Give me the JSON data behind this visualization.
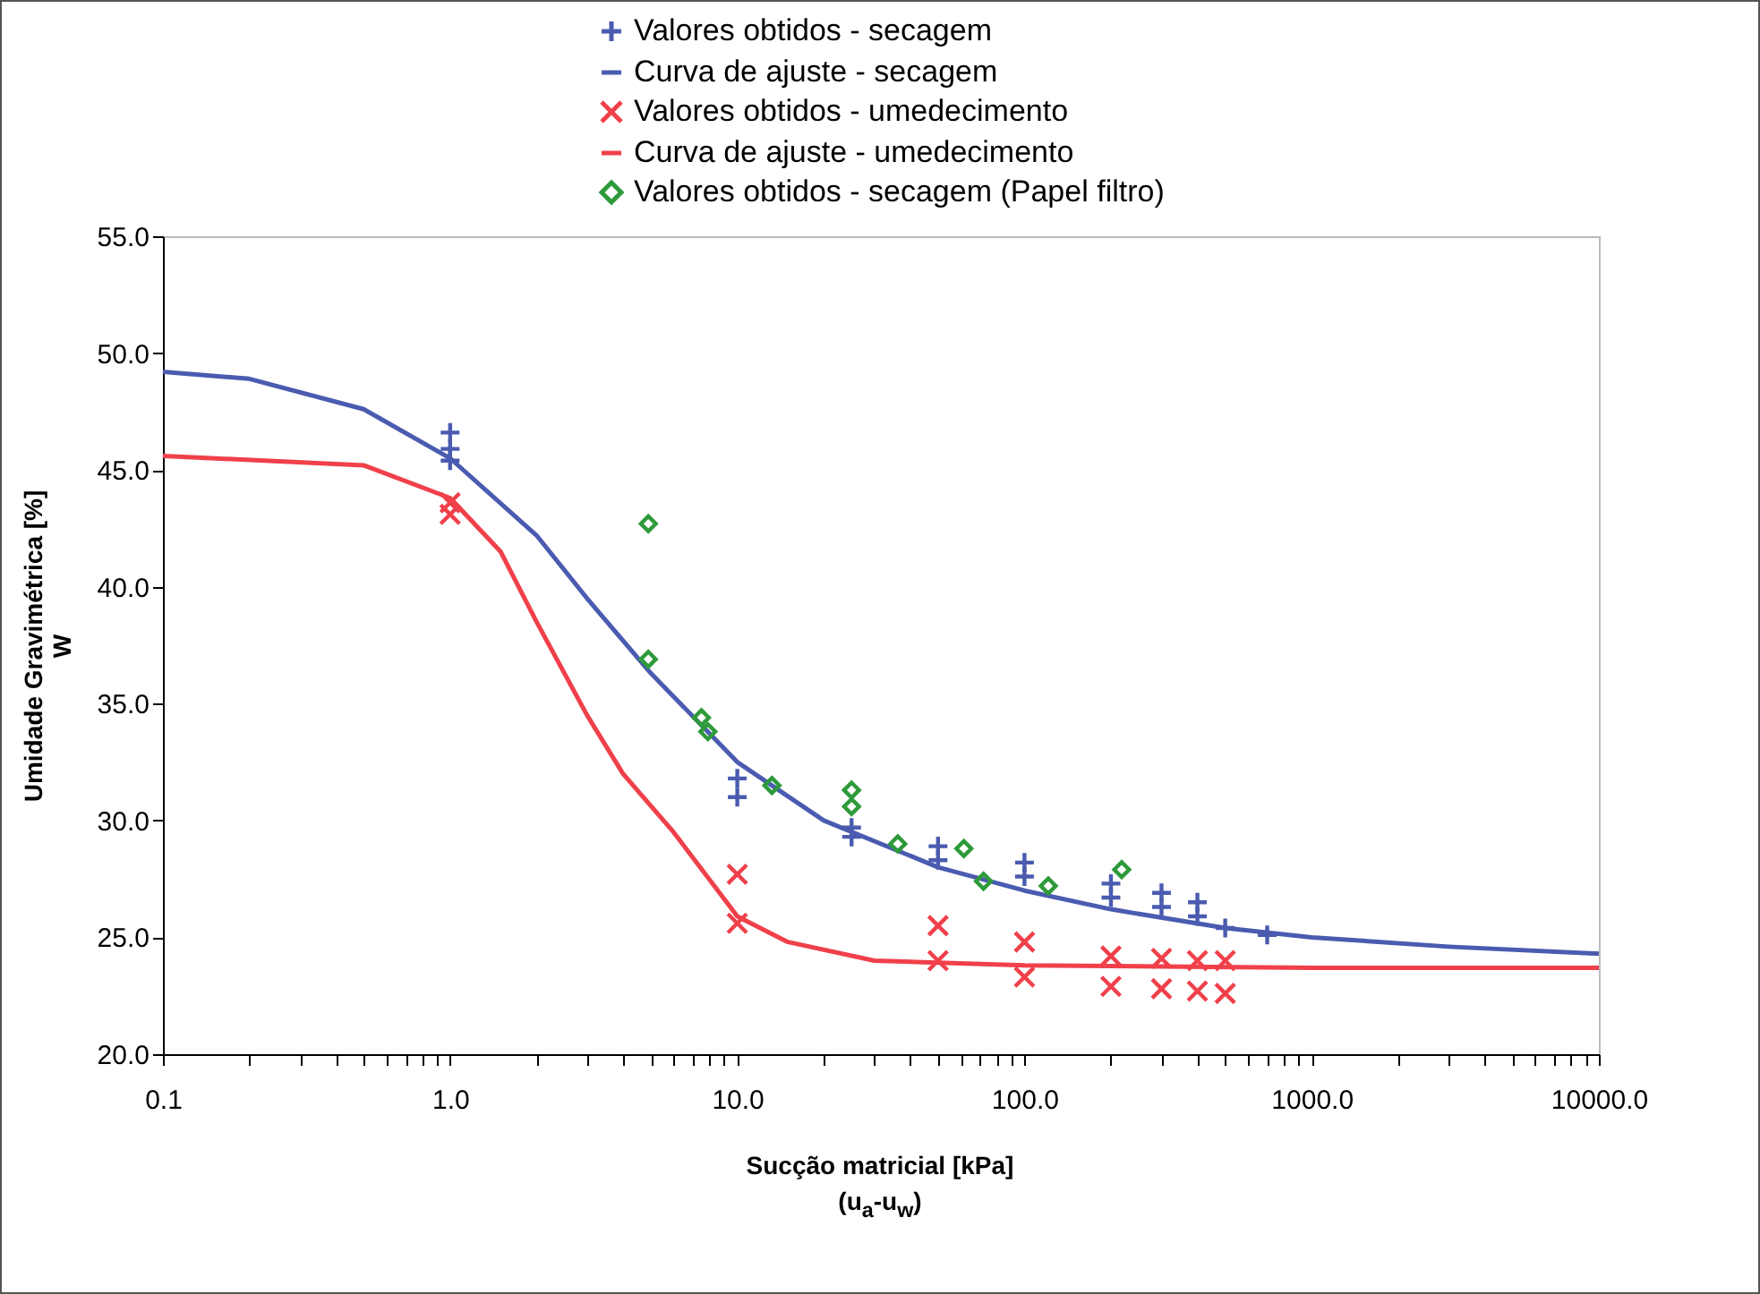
{
  "chart_data": {
    "type": "scatter",
    "xlabel": "Sucção matricial [kPa]\n(u$_{a}$-u$_{w}$)",
    "ylabel": "Umidade  Gravimétrica [%]\nW",
    "log": "x",
    "grid": false,
    "legend": "top",
    "xlim": [
      0.1,
      10000
    ],
    "ylim": [
      20,
      55
    ],
    "xticks": [
      {
        "value": 0.1,
        "label": "0.1"
      },
      {
        "value": 0.2,
        "label": null
      },
      {
        "value": 0.3,
        "label": null
      },
      {
        "value": 0.4,
        "label": null
      },
      {
        "value": 0.5,
        "label": null
      },
      {
        "value": 0.6,
        "label": null
      },
      {
        "value": 0.7,
        "label": null
      },
      {
        "value": 0.8,
        "label": null
      },
      {
        "value": 0.9,
        "label": null
      },
      {
        "value": 1,
        "label": "1.0"
      },
      {
        "value": 2,
        "label": null
      },
      {
        "value": 3,
        "label": null
      },
      {
        "value": 4,
        "label": null
      },
      {
        "value": 5,
        "label": null
      },
      {
        "value": 6,
        "label": null
      },
      {
        "value": 7,
        "label": null
      },
      {
        "value": 8,
        "label": null
      },
      {
        "value": 9,
        "label": null
      },
      {
        "value": 10,
        "label": "10.0"
      },
      {
        "value": 20,
        "label": null
      },
      {
        "value": 30,
        "label": null
      },
      {
        "value": 40,
        "label": null
      },
      {
        "value": 50,
        "label": null
      },
      {
        "value": 60,
        "label": null
      },
      {
        "value": 70,
        "label": null
      },
      {
        "value": 80,
        "label": null
      },
      {
        "value": 90,
        "label": null
      },
      {
        "value": 100,
        "label": "100.0"
      },
      {
        "value": 200,
        "label": null
      },
      {
        "value": 300,
        "label": null
      },
      {
        "value": 400,
        "label": null
      },
      {
        "value": 500,
        "label": null
      },
      {
        "value": 600,
        "label": null
      },
      {
        "value": 700,
        "label": null
      },
      {
        "value": 800,
        "label": null
      },
      {
        "value": 900,
        "label": null
      },
      {
        "value": 1000,
        "label": "1000.0"
      },
      {
        "value": 2000,
        "label": null
      },
      {
        "value": 3000,
        "label": null
      },
      {
        "value": 4000,
        "label": null
      },
      {
        "value": 5000,
        "label": null
      },
      {
        "value": 6000,
        "label": null
      },
      {
        "value": 7000,
        "label": null
      },
      {
        "value": 8000,
        "label": null
      },
      {
        "value": 9000,
        "label": null
      },
      {
        "value": 10000,
        "label": "10000.0"
      }
    ],
    "yticks": [
      {
        "value": 20,
        "label": "20.0"
      },
      {
        "value": 25,
        "label": "25.0"
      },
      {
        "value": 30,
        "label": "30.0"
      },
      {
        "value": 35,
        "label": "35.0"
      },
      {
        "value": 40,
        "label": "40.0"
      },
      {
        "value": 45,
        "label": "45.0"
      },
      {
        "value": 50,
        "label": "50.0"
      },
      {
        "value": 55,
        "label": "55.0"
      }
    ],
    "series": [
      {
        "name": "Valores obtidos - secagem",
        "type": "scatter",
        "marker": "plus",
        "color": "#4a5bb0",
        "x": [
          1,
          1,
          1,
          10,
          10,
          25,
          25,
          50,
          50,
          100,
          100,
          200,
          200,
          300,
          300,
          400,
          400,
          500,
          700
        ],
        "values": [
          46.6,
          45.9,
          45.4,
          31.8,
          31.0,
          29.7,
          29.3,
          28.9,
          28.3,
          28.2,
          27.6,
          27.3,
          26.7,
          26.9,
          26.3,
          26.5,
          25.9,
          25.4,
          25.1
        ]
      },
      {
        "name": "Curva de ajuste - secagem",
        "type": "line",
        "marker": "none",
        "color": "#4a5bb0",
        "x": [
          0.1,
          0.2,
          0.5,
          1,
          2,
          3,
          5,
          10,
          20,
          50,
          100,
          200,
          500,
          1000,
          3000,
          10000
        ],
        "values": [
          49.2,
          48.9,
          47.6,
          45.5,
          42.2,
          39.5,
          36.3,
          32.5,
          30.0,
          28.0,
          27.0,
          26.2,
          25.4,
          25.0,
          24.6,
          24.3
        ]
      },
      {
        "name": "Valores obtidos - umedecimento",
        "type": "scatter",
        "marker": "cross",
        "color": "#f0404a",
        "x": [
          1,
          1,
          10,
          10,
          50,
          50,
          100,
          100,
          200,
          200,
          300,
          300,
          400,
          400,
          500,
          500
        ],
        "values": [
          43.6,
          43.1,
          27.7,
          25.6,
          25.5,
          24.0,
          24.8,
          23.3,
          24.2,
          22.9,
          24.1,
          22.8,
          24.0,
          22.7,
          24.0,
          22.6
        ]
      },
      {
        "name": "Curva de ajuste - umedecimento",
        "type": "line",
        "marker": "none",
        "color": "#f0404a",
        "x": [
          0.1,
          0.5,
          1,
          1.5,
          2,
          3,
          4,
          6,
          10,
          15,
          30,
          100,
          1000,
          10000
        ],
        "values": [
          45.6,
          45.2,
          43.8,
          41.5,
          38.5,
          34.5,
          32.0,
          29.5,
          25.9,
          24.8,
          24.0,
          23.8,
          23.7,
          23.7
        ]
      },
      {
        "name": "Valores obtidos - secagem (Papel filtro)",
        "type": "scatter",
        "marker": "diamond",
        "color": "#2e9a3a",
        "x": [
          4.9,
          4.9,
          7.5,
          7.9,
          13.2,
          25,
          25,
          36.2,
          61.5,
          72,
          121,
          218
        ],
        "values": [
          42.7,
          36.9,
          34.4,
          33.8,
          31.5,
          31.3,
          30.6,
          29.0,
          28.8,
          27.4,
          27.2,
          27.9
        ]
      }
    ]
  }
}
